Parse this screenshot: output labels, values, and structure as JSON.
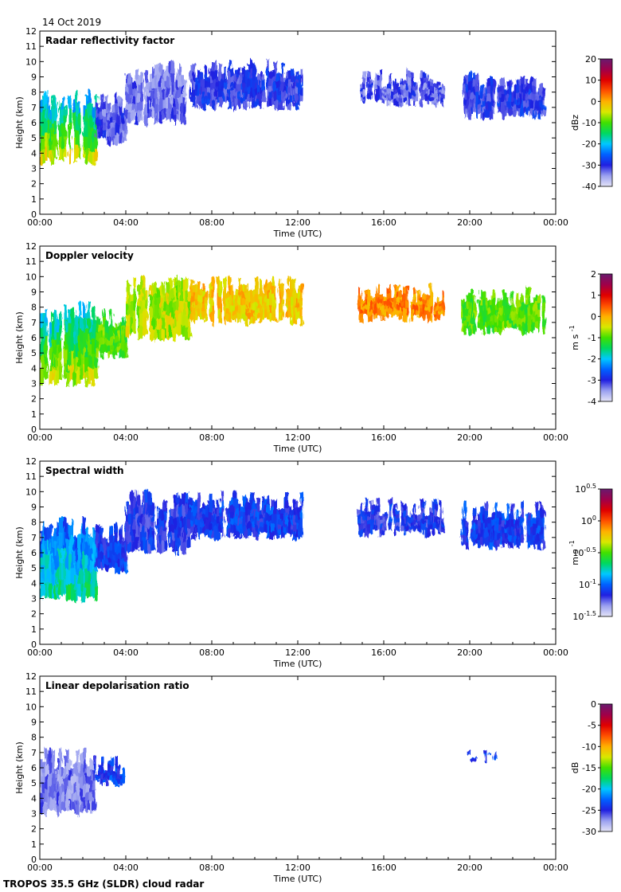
{
  "date_label": "14 Oct 2019",
  "footer_label": "TROPOS 35.5 GHz (SLDR) cloud radar",
  "x_axis": {
    "label": "Time (UTC)",
    "range_hours": [
      0,
      24
    ],
    "ticks": [
      0,
      4,
      8,
      12,
      16,
      20,
      24
    ],
    "tick_labels": [
      "00:00",
      "04:00",
      "08:00",
      "12:00",
      "16:00",
      "20:00",
      "00:00"
    ]
  },
  "y_axis": {
    "label": "Height (km)",
    "range_km": [
      0,
      12
    ],
    "ticks": [
      0,
      1,
      2,
      3,
      4,
      5,
      6,
      7,
      8,
      9,
      10,
      11,
      12
    ],
    "tick_labels": [
      "0",
      "1",
      "2",
      "3",
      "4",
      "5",
      "6",
      "7",
      "8",
      "9",
      "10",
      "11",
      "12"
    ]
  },
  "colormap": [
    "#e4e4f7",
    "#9aa0f0",
    "#2020e0",
    "#0060ff",
    "#00c8ff",
    "#00d860",
    "#40e000",
    "#d8e800",
    "#ffb000",
    "#ff5000",
    "#e00000",
    "#a0004a",
    "#6a1a6e"
  ],
  "chart_data": [
    {
      "type": "heatmap",
      "id": "Z",
      "title": "Radar reflectivity factor",
      "xlabel": "Time (UTC)",
      "ylabel": "Height (km)",
      "xlim": [
        0,
        24
      ],
      "ylim": [
        0,
        12
      ],
      "colorbar": {
        "label": "dBz",
        "min": -40,
        "max": 20,
        "ticks": [
          20,
          10,
          0,
          -10,
          -20,
          -30,
          -40
        ],
        "tick_labels": [
          "20",
          "10",
          "0",
          "-10",
          "-20",
          "-30",
          "-40"
        ]
      },
      "echo_regions": [
        {
          "t_start": 0.0,
          "t_end": 2.6,
          "base_km": 3.2,
          "top_km": 8.3,
          "value": -20,
          "gradient_to": -5
        },
        {
          "t_start": 2.6,
          "t_end": 4.0,
          "base_km": 4.5,
          "top_km": 8.0,
          "value": -32
        },
        {
          "t_start": 4.0,
          "t_end": 7.0,
          "base_km": 5.8,
          "top_km": 10.0,
          "value": -33
        },
        {
          "t_start": 7.0,
          "t_end": 12.2,
          "base_km": 6.8,
          "top_km": 10.2,
          "value": -30
        },
        {
          "t_start": 14.8,
          "t_end": 18.8,
          "base_km": 7.0,
          "top_km": 9.6,
          "value": -32
        },
        {
          "t_start": 19.6,
          "t_end": 23.4,
          "base_km": 6.2,
          "top_km": 9.4,
          "value": -30
        }
      ]
    },
    {
      "type": "heatmap",
      "id": "v",
      "title": "Doppler velocity",
      "xlabel": "Time (UTC)",
      "ylabel": "Height (km)",
      "xlim": [
        0,
        24
      ],
      "ylim": [
        0,
        12
      ],
      "colorbar": {
        "label": "m s",
        "label_exp": "-1",
        "min": -4,
        "max": 2,
        "ticks": [
          2,
          1,
          0,
          -1,
          -2,
          -3,
          -4
        ],
        "tick_labels": [
          "2",
          "1",
          "0",
          "-1",
          "-2",
          "-3",
          "-4"
        ]
      },
      "echo_regions": [
        {
          "t_start": 0.0,
          "t_end": 2.6,
          "base_km": 2.8,
          "top_km": 8.4,
          "value": -1.8,
          "gradient_to": -0.6
        },
        {
          "t_start": 2.6,
          "t_end": 4.0,
          "base_km": 4.6,
          "top_km": 8.0,
          "value": -1.0
        },
        {
          "t_start": 4.0,
          "t_end": 7.0,
          "base_km": 5.8,
          "top_km": 10.2,
          "value": -0.6
        },
        {
          "t_start": 7.0,
          "t_end": 12.2,
          "base_km": 6.8,
          "top_km": 10.2,
          "value": -0.2
        },
        {
          "t_start": 14.8,
          "t_end": 18.8,
          "base_km": 7.0,
          "top_km": 9.6,
          "value": 0.2
        },
        {
          "t_start": 19.6,
          "t_end": 23.4,
          "base_km": 6.2,
          "top_km": 9.4,
          "value": -1.0
        }
      ]
    },
    {
      "type": "heatmap",
      "id": "sw",
      "title": "Spectral width",
      "xlabel": "Time (UTC)",
      "ylabel": "Height (km)",
      "xlim": [
        0,
        24
      ],
      "ylim": [
        0,
        12
      ],
      "colorbar": {
        "label": "m s",
        "label_exp": "-1",
        "scale": "log10",
        "min": -1.5,
        "max": 0.5,
        "ticks": [
          0.5,
          0,
          -0.5,
          -1,
          -1.5
        ],
        "tick_labels": [
          "10^0.5",
          "10^0",
          "10^-0.5",
          "10^-1",
          "10^-1.5"
        ]
      },
      "echo_regions": [
        {
          "t_start": 0.0,
          "t_end": 2.6,
          "base_km": 2.7,
          "top_km": 8.4,
          "value": -1.0,
          "gradient_to": -0.7
        },
        {
          "t_start": 2.6,
          "t_end": 4.0,
          "base_km": 4.6,
          "top_km": 8.0,
          "value": -1.1
        },
        {
          "t_start": 4.0,
          "t_end": 7.0,
          "base_km": 5.8,
          "top_km": 10.2,
          "value": -1.15
        },
        {
          "t_start": 7.0,
          "t_end": 12.2,
          "base_km": 6.8,
          "top_km": 10.2,
          "value": -1.1
        },
        {
          "t_start": 14.8,
          "t_end": 18.8,
          "base_km": 7.0,
          "top_km": 9.6,
          "value": -1.15
        },
        {
          "t_start": 19.6,
          "t_end": 23.4,
          "base_km": 6.2,
          "top_km": 9.4,
          "value": -1.1
        }
      ]
    },
    {
      "type": "heatmap",
      "id": "ldr",
      "title": "Linear depolarisation ratio",
      "xlabel": "Time (UTC)",
      "ylabel": "Height (km)",
      "xlim": [
        0,
        24
      ],
      "ylim": [
        0,
        12
      ],
      "colorbar": {
        "label": "dB",
        "min": -30,
        "max": 0,
        "ticks": [
          0,
          -5,
          -10,
          -15,
          -20,
          -25,
          -30
        ],
        "tick_labels": [
          "0",
          "-5",
          "-10",
          "-15",
          "-20",
          "-25",
          "-30"
        ]
      },
      "echo_regions": [
        {
          "t_start": 0.0,
          "t_end": 2.5,
          "base_km": 2.8,
          "top_km": 7.3,
          "value": -27
        },
        {
          "t_start": 2.5,
          "t_end": 3.9,
          "base_km": 4.8,
          "top_km": 6.9,
          "value": -24
        },
        {
          "t_start": 19.9,
          "t_end": 21.2,
          "base_km": 6.3,
          "top_km": 7.3,
          "value": -24
        }
      ]
    }
  ]
}
